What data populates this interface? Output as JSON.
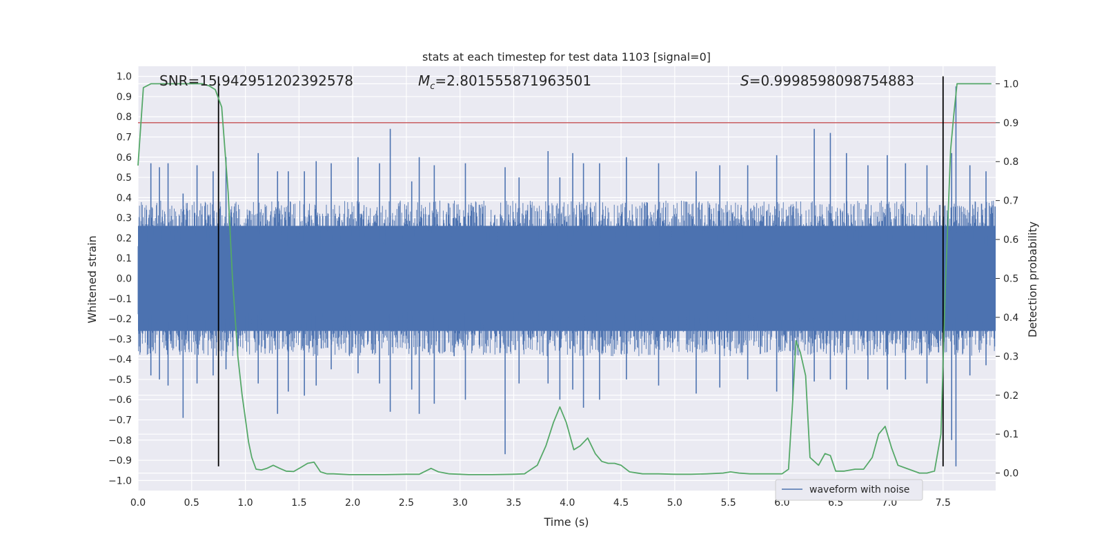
{
  "chart_data": {
    "type": "line",
    "title": "stats at each timestep for test data 1103 [signal=0]",
    "xlabel": "Time (s)",
    "ylabel": "Whitened strain",
    "y2label": "Detection probability",
    "xlim": [
      0.0,
      7.99
    ],
    "ylim": [
      -1.05,
      1.05
    ],
    "y2lim": [
      -0.045,
      1.045
    ],
    "xticks": [
      "0.0",
      "0.5",
      "1.0",
      "1.5",
      "2.0",
      "2.5",
      "3.0",
      "3.5",
      "4.0",
      "4.5",
      "5.0",
      "5.5",
      "6.0",
      "6.5",
      "7.0",
      "7.5"
    ],
    "yticks": [
      "1.0",
      "0.9",
      "0.8",
      "0.7",
      "0.6",
      "0.5",
      "0.4",
      "0.3",
      "0.2",
      "0.1",
      "0.0",
      "−0.1",
      "−0.2",
      "−0.3",
      "−0.4",
      "−0.5",
      "−0.6",
      "−0.7",
      "−0.8",
      "−0.9",
      "−1.0"
    ],
    "y2ticks": [
      "1.0",
      "0.9",
      "0.8",
      "0.7",
      "0.6",
      "0.5",
      "0.4",
      "0.3",
      "0.2",
      "0.1",
      "0.0"
    ],
    "grid": true,
    "legend_position": "lower-right",
    "annotations": {
      "snr": "SNR=15.942951202392578",
      "mc": "=2.801555871963501",
      "mc_symbol": "M",
      "mc_sub": "c",
      "s": "=0.9998598098754883",
      "s_symbol": "S"
    },
    "threshold": {
      "y2": 0.9,
      "color": "#c44e52"
    },
    "vlines": [
      {
        "x": 0.75,
        "y_range": [
          -0.93,
          1.0
        ],
        "color": "#000000"
      },
      {
        "x": 7.5,
        "y_range": [
          -0.93,
          1.0
        ],
        "color": "#000000"
      }
    ],
    "series": [
      {
        "name": "waveform with noise",
        "axis": "left",
        "color": "#4c72b0",
        "noise_band": [
          -0.35,
          0.35
        ],
        "spikes": [
          [
            0.12,
            0.57,
            -0.48
          ],
          [
            0.2,
            0.55,
            -0.5
          ],
          [
            0.28,
            0.57,
            -0.53
          ],
          [
            0.42,
            0.42,
            -0.69
          ],
          [
            0.55,
            0.56,
            -0.52
          ],
          [
            0.7,
            0.53,
            -0.48
          ],
          [
            0.82,
            0.6,
            -0.45
          ],
          [
            1.12,
            0.62,
            -0.52
          ],
          [
            1.3,
            0.53,
            -0.67
          ],
          [
            1.4,
            0.53,
            -0.56
          ],
          [
            1.55,
            0.53,
            -0.58
          ],
          [
            1.66,
            0.58,
            -0.53
          ],
          [
            1.8,
            0.57,
            -0.45
          ],
          [
            2.05,
            0.6,
            -0.47
          ],
          [
            2.25,
            0.57,
            -0.52
          ],
          [
            2.35,
            0.74,
            -0.66
          ],
          [
            2.55,
            0.48,
            -0.55
          ],
          [
            2.62,
            0.6,
            -0.67
          ],
          [
            2.76,
            0.56,
            -0.62
          ],
          [
            3.05,
            0.57,
            -0.6
          ],
          [
            3.42,
            0.55,
            -0.87
          ],
          [
            3.55,
            0.5,
            -0.52
          ],
          [
            3.82,
            0.63,
            -0.52
          ],
          [
            3.93,
            0.5,
            -0.6
          ],
          [
            4.05,
            0.62,
            -0.55
          ],
          [
            4.15,
            0.57,
            -0.64
          ],
          [
            4.3,
            0.57,
            -0.6
          ],
          [
            4.55,
            0.6,
            -0.5
          ],
          [
            4.85,
            0.57,
            -0.53
          ],
          [
            5.2,
            0.53,
            -0.57
          ],
          [
            5.42,
            0.56,
            -0.54
          ],
          [
            5.68,
            0.56,
            -0.5
          ],
          [
            5.95,
            0.61,
            -0.56
          ],
          [
            6.1,
            0.33,
            -0.6
          ],
          [
            6.3,
            0.74,
            -0.51
          ],
          [
            6.45,
            0.72,
            -0.5
          ],
          [
            6.6,
            0.62,
            -0.55
          ],
          [
            6.8,
            0.56,
            -0.5
          ],
          [
            6.98,
            0.61,
            -0.55
          ],
          [
            7.15,
            0.57,
            -0.5
          ],
          [
            7.35,
            0.56,
            -0.52
          ],
          [
            7.58,
            0.62,
            -0.8
          ],
          [
            7.62,
            0.95,
            -0.93
          ],
          [
            7.75,
            0.56,
            -0.48
          ],
          [
            7.9,
            0.53,
            -0.43
          ]
        ]
      },
      {
        "name": "",
        "axis": "right",
        "color": "#55a868",
        "x": [
          0.0,
          0.05,
          0.12,
          0.2,
          0.3,
          0.4,
          0.5,
          0.6,
          0.66,
          0.72,
          0.78,
          0.84,
          0.88,
          0.93,
          0.97,
          1.0,
          1.03,
          1.06,
          1.1,
          1.15,
          1.2,
          1.26,
          1.32,
          1.38,
          1.45,
          1.52,
          1.58,
          1.64,
          1.7,
          1.76,
          1.82,
          1.9,
          1.97,
          2.05,
          2.15,
          2.3,
          2.5,
          2.62,
          2.73,
          2.8,
          2.9,
          3.0,
          3.08,
          3.15,
          3.3,
          3.5,
          3.6,
          3.72,
          3.8,
          3.87,
          3.93,
          3.99,
          4.06,
          4.12,
          4.19,
          4.26,
          4.32,
          4.38,
          4.44,
          4.5,
          4.58,
          4.7,
          4.85,
          5.0,
          5.15,
          5.3,
          5.45,
          5.52,
          5.6,
          5.7,
          5.82,
          6.0,
          6.06,
          6.1,
          6.13,
          6.17,
          6.22,
          6.26,
          6.34,
          6.4,
          6.45,
          6.5,
          6.58,
          6.68,
          6.76,
          6.84,
          6.9,
          6.96,
          7.02,
          7.08,
          7.18,
          7.28,
          7.35,
          7.42,
          7.48,
          7.52,
          7.57,
          7.6,
          7.63,
          7.66,
          7.7,
          7.8,
          7.95
        ],
        "y": [
          0.79,
          0.99,
          1.0,
          1.0,
          1.0,
          1.0,
          1.0,
          1.0,
          0.995,
          0.985,
          0.94,
          0.72,
          0.5,
          0.3,
          0.2,
          0.14,
          0.08,
          0.04,
          0.01,
          0.008,
          0.012,
          0.02,
          0.012,
          0.005,
          0.004,
          0.015,
          0.025,
          0.028,
          0.003,
          -0.002,
          -0.002,
          -0.003,
          -0.004,
          -0.004,
          -0.004,
          -0.004,
          -0.003,
          -0.003,
          0.012,
          0.003,
          -0.002,
          -0.003,
          -0.004,
          -0.004,
          -0.004,
          -0.003,
          -0.002,
          0.02,
          0.07,
          0.13,
          0.17,
          0.13,
          0.06,
          0.07,
          0.09,
          0.05,
          0.03,
          0.025,
          0.025,
          0.02,
          0.003,
          -0.002,
          -0.002,
          -0.003,
          -0.003,
          -0.002,
          0.0,
          0.003,
          0.0,
          -0.002,
          -0.002,
          -0.002,
          0.01,
          0.19,
          0.34,
          0.31,
          0.25,
          0.04,
          0.02,
          0.05,
          0.045,
          0.005,
          0.005,
          0.01,
          0.01,
          0.04,
          0.1,
          0.12,
          0.065,
          0.02,
          0.01,
          0.0,
          0.0,
          0.005,
          0.1,
          0.47,
          0.83,
          0.92,
          1.0,
          1.0,
          1.0,
          1.0,
          1.0
        ]
      }
    ]
  }
}
